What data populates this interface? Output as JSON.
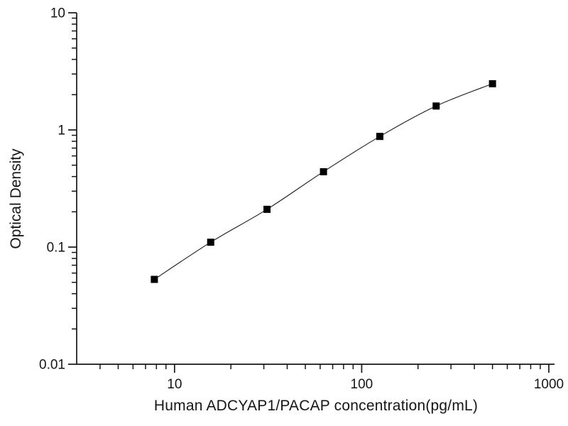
{
  "figure": {
    "background": "#ffffff",
    "ink_color": "#161616"
  },
  "chart_data": {
    "type": "scatter",
    "subtype": "log-log standard curve with connecting smoothed line",
    "title": "",
    "xlabel": "Human ADCYAP1/PACAP concentration(pg/mL)",
    "ylabel": "Optical Density",
    "x_scale": "log",
    "y_scale": "log",
    "xlim": [
      3,
      1000
    ],
    "ylim": [
      0.01,
      10
    ],
    "x_major_ticks": [
      10,
      100,
      1000
    ],
    "x_major_tick_labels": [
      "10",
      "100",
      "1000"
    ],
    "x_minor_ticks": [
      4,
      5,
      6,
      7,
      8,
      9,
      20,
      30,
      40,
      50,
      60,
      70,
      80,
      90,
      200,
      300,
      400,
      500,
      600,
      700,
      800,
      900
    ],
    "y_major_ticks": [
      0.01,
      0.1,
      1,
      10
    ],
    "y_major_tick_labels": [
      "0.01",
      "0.1",
      "1",
      "10"
    ],
    "y_minor_ticks": [
      0.02,
      0.03,
      0.04,
      0.05,
      0.06,
      0.07,
      0.08,
      0.09,
      0.2,
      0.3,
      0.4,
      0.5,
      0.6,
      0.7,
      0.8,
      0.9,
      2,
      3,
      4,
      5,
      6,
      7,
      8,
      9
    ],
    "grid": false,
    "legend": null,
    "series": [
      {
        "name": "standard-curve",
        "marker": "filled-square",
        "marker_color": "#000000",
        "line_color": "#1a1a1a",
        "x": [
          7.8,
          15.6,
          31.2,
          62.5,
          125,
          250,
          500
        ],
        "y": [
          0.053,
          0.11,
          0.21,
          0.44,
          0.88,
          1.6,
          2.48
        ]
      }
    ]
  }
}
